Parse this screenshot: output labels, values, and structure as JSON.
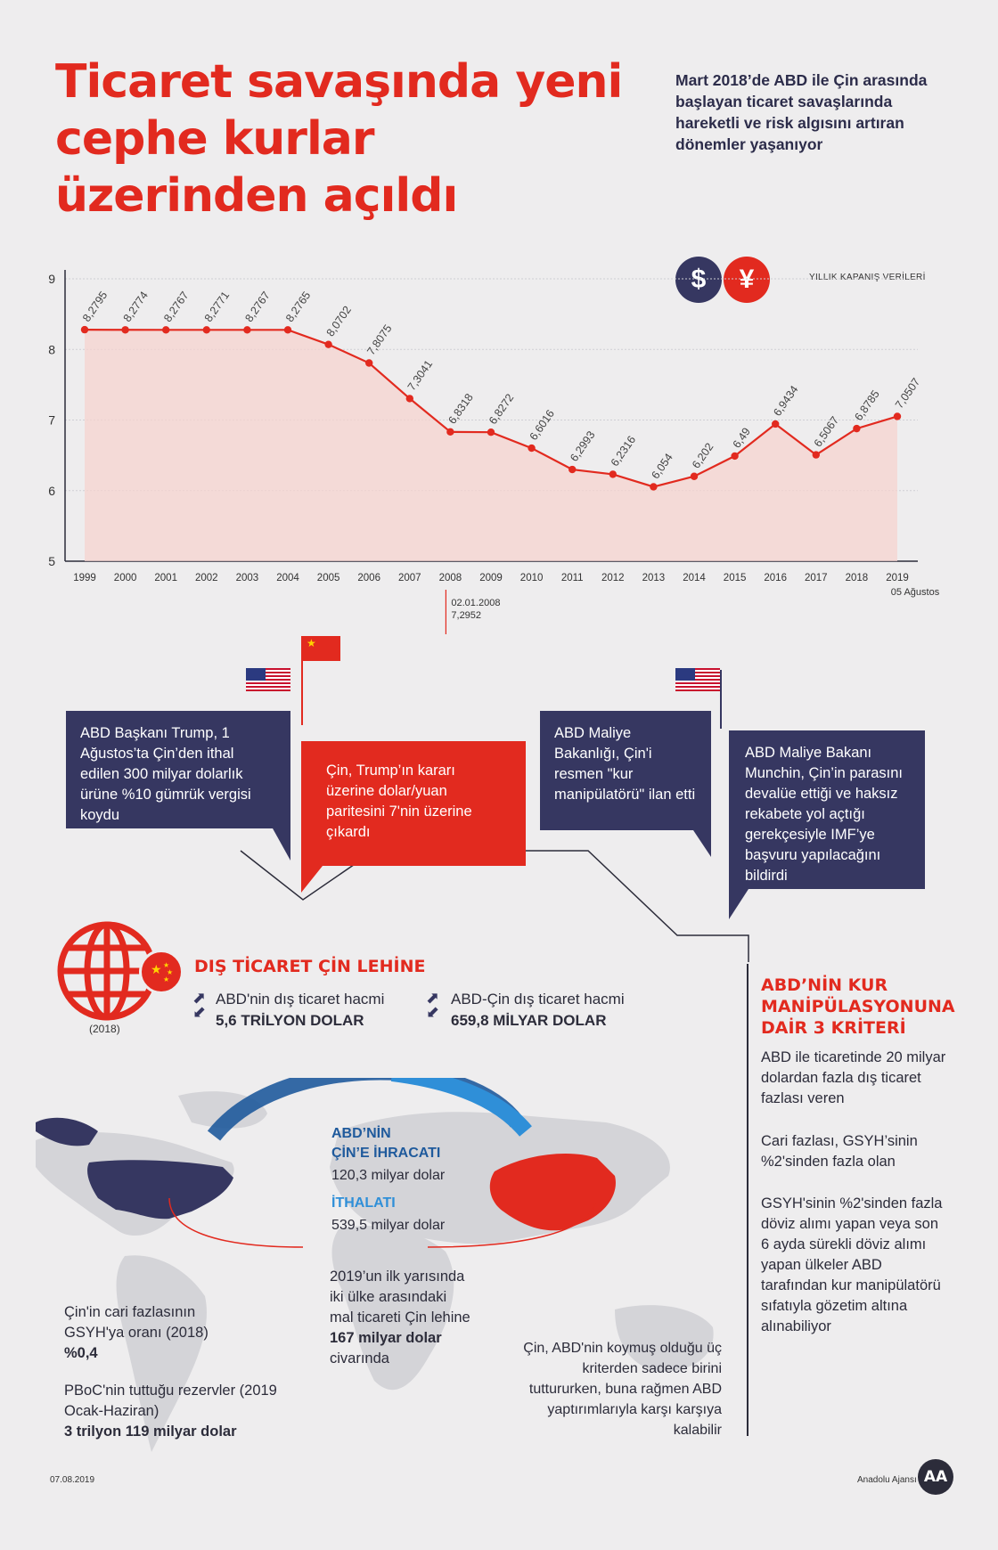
{
  "header": {
    "title": "Ticaret savaşında yeni cephe kurlar üzerinden açıldı",
    "subtitle": "Mart 2018’de ABD ile Çin arasında başlayan ticaret savaşlarında hareketli ve risk algısını artıran dönemler yaşanıyor"
  },
  "chart_note": "YILLIK KAPANIŞ VERİLERİ",
  "currency_icons": {
    "dollar": "$",
    "yuan": "¥"
  },
  "chart_data": {
    "type": "area",
    "title": "",
    "xlabel": "",
    "ylabel": "",
    "x": [
      "1999",
      "2000",
      "2001",
      "2002",
      "2003",
      "2004",
      "2005",
      "2006",
      "2007",
      "2008",
      "2009",
      "2010",
      "2011",
      "2012",
      "2013",
      "2014",
      "2015",
      "2016",
      "2017",
      "2018",
      "2019"
    ],
    "values": [
      8.2795,
      8.2774,
      8.2767,
      8.2771,
      8.2767,
      8.2765,
      8.0702,
      7.8075,
      7.3041,
      6.8318,
      6.8272,
      6.6016,
      6.2993,
      6.2316,
      6.054,
      6.202,
      6.49,
      6.9434,
      6.5067,
      6.8785,
      7.0507
    ],
    "value_labels": [
      "8,2795",
      "8,2774",
      "8,2767",
      "8,2771",
      "8,2767",
      "8,2765",
      "8,0702",
      "7,8075",
      "7,3041",
      "6,8318",
      "6,8272",
      "6,6016",
      "6,2993",
      "6,2316",
      "6,054",
      "6,202",
      "6,49",
      "6,9434",
      "6,5067",
      "6,8785",
      "7,0507"
    ],
    "yticks": [
      "9",
      "8",
      "7",
      "6",
      "5"
    ],
    "ylim": [
      5,
      9
    ],
    "last_label": "05 Ağustos",
    "annotation": {
      "date": "02.01.2008",
      "value": "7,2952"
    },
    "colors": {
      "line": "#e22a1f",
      "fill": "#f6d3cf"
    }
  },
  "timeline": {
    "b1": "ABD Başkanı Trump, 1 Ağustos’ta Çin’den ithal edilen 300 milyar dolarlık ürüne %10 gümrük vergisi koydu",
    "b2": "Çin, Trump’ın kararı üzerine dolar/yuan paritesini 7'nin üzerine çıkardı",
    "b3": "ABD Maliye Bakanlığı, Çin'i resmen \"kur manipülatörü\" ilan etti",
    "b4": "ABD Maliye Bakanı Munchin, Çin’in parasını devalüe ettiği ve haksız rekabete yol açtığı gerekçesiyle IMF’ye başvuru yapılacağını bildirdi"
  },
  "trade": {
    "title": "DIŞ TİCARET ÇİN LEHİNE",
    "year": "(2018)",
    "s1_label": "ABD'nin dış ticaret hacmi",
    "s1_value": "5,6 TRİLYON DOLAR",
    "s2_label": "ABD-Çin dış ticaret hacmi",
    "s2_value": "659,8 MİLYAR DOLAR"
  },
  "map": {
    "export_title_1": "ABD’NİN",
    "export_title_2": "ÇİN’E İHRACATI",
    "export_value": "120,3 milyar dolar",
    "import_title": "İTHALATI",
    "import_value": "539,5 milyar dolar",
    "mid_text": "2019’un ilk yarısında iki ülke arasındaki mal ticareti Çin lehine",
    "mid_bold": "167 milyar dolar",
    "mid_tail": "civarında",
    "cari_label": "Çin'in cari fazlasının GSYH'ya oranı (2018)",
    "cari_value": "%0,4",
    "pboc_label": "PBoC'nin tuttuğu rezervler (2019 Ocak-Haziran)",
    "pboc_value": "3 trilyon 119 milyar dolar",
    "china_note": "Çin, ABD'nin koymuş olduğu üç kriterden sadece birini tuttururken, buna rağmen ABD yaptırımlarıyla karşı karşıya kalabilir"
  },
  "criteria": {
    "title": "ABD’NİN KUR MANİPÜLASYONUNA DAİR 3 KRİTERİ",
    "c1": "ABD ile ticaretinde 20 milyar dolardan fazla dış ticaret fazlası veren",
    "c2": "Cari fazlası, GSYH’sinin %2'sinden fazla olan",
    "c3": "GSYH'sinin %2'sinden fazla döviz alımı yapan veya son 6 ayda sürekli döviz alımı yapan ülkeler ABD tarafından kur manipülatörü sıfatıyla gözetim altına alınabiliyor"
  },
  "footer": {
    "date": "07.08.2019",
    "source": "Anadolu Ajansı",
    "logo": "AA"
  }
}
